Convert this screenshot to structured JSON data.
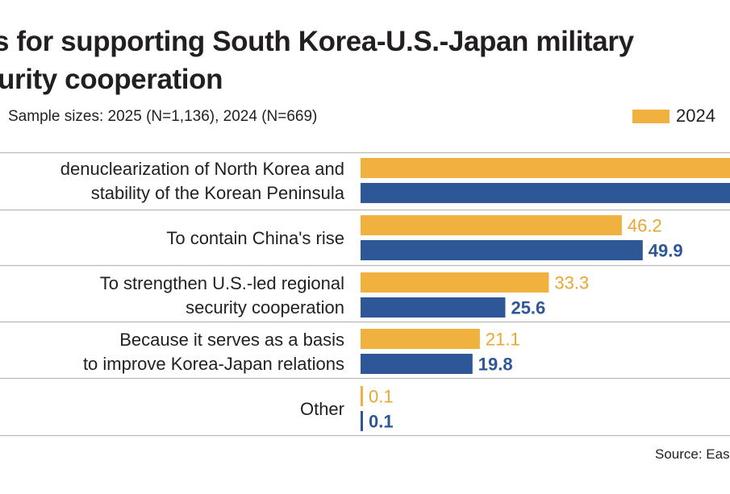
{
  "title_lines": [
    "s for supporting South Korea-U.S.-Japan military",
    "urity cooperation"
  ],
  "subtitle": "Sample sizes: 2025 (N=1,136), 2024 (N=669)",
  "source": "Source: Eas",
  "colors": {
    "y2024": "#f0b13f",
    "y2025": "#2d5797",
    "divider": "#b9b9b9",
    "label_2024": "#eaa630",
    "label_2025": "#2d5797"
  },
  "chart_data": {
    "type": "bar",
    "orientation": "horizontal",
    "categories": [
      [
        "denuclearization of North Korea and",
        "stability of the Korean Peninsula"
      ],
      [
        "To contain China's rise"
      ],
      [
        "To strengthen U.S.-led regional",
        "security cooperation"
      ],
      [
        "Because it serves as a basis",
        "to improve Korea-Japan relations"
      ],
      [
        "Other"
      ]
    ],
    "series": [
      {
        "name": "2024",
        "values": [
          null,
          46.2,
          33.3,
          21.1,
          0.1
        ],
        "labels": [
          "",
          "46.2",
          "33.3",
          "21.1",
          "0.1"
        ]
      },
      {
        "values": [
          null,
          49.9,
          25.6,
          19.8,
          0.1
        ],
        "labels": [
          "",
          "49.9",
          "25.6",
          "19.8",
          "0.1"
        ]
      }
    ],
    "legend": {
      "position": "top-right",
      "entries": [
        "2024"
      ]
    }
  }
}
